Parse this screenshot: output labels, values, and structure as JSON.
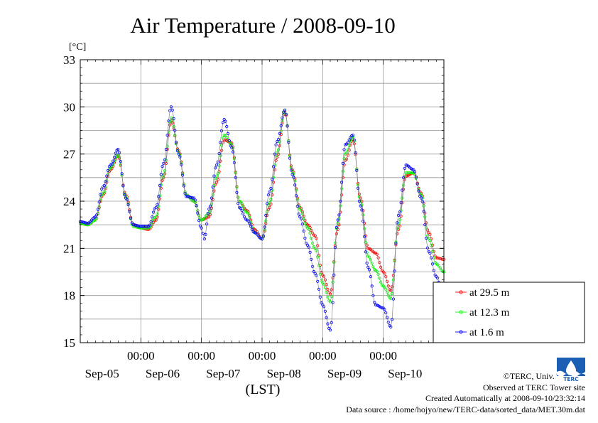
{
  "chart_data": {
    "type": "line",
    "title": "Air Temperature / 2008-09-10",
    "ylabel": "[°C]",
    "xlabel": "(LST)",
    "ylim": [
      15,
      33
    ],
    "yticks": [
      "33",
      "30",
      "27",
      "24",
      "21",
      "18",
      "15"
    ],
    "xlim": [
      0,
      6
    ],
    "xticks_top": [
      {
        "x": 1,
        "label": "00:00"
      },
      {
        "x": 2,
        "label": "00:00"
      },
      {
        "x": 3,
        "label": "00:00"
      },
      {
        "x": 4,
        "label": "00:00"
      },
      {
        "x": 5,
        "label": "00:00"
      }
    ],
    "xticks_bottom": [
      {
        "x": 0.5,
        "label": "Sep-05"
      },
      {
        "x": 1.5,
        "label": "Sep-06"
      },
      {
        "x": 2.5,
        "label": "Sep-07"
      },
      {
        "x": 3.5,
        "label": "Sep-08"
      },
      {
        "x": 4.5,
        "label": "Sep-09"
      },
      {
        "x": 5.5,
        "label": "Sep-10"
      }
    ],
    "grid": true,
    "legend_position": "right",
    "series": [
      {
        "name": "at 29.5 m",
        "color": "#ff0000",
        "points": [
          [
            0,
            22.6
          ],
          [
            0.125,
            22.5
          ],
          [
            0.25,
            22.8
          ],
          [
            0.375,
            24.4
          ],
          [
            0.5,
            26.0
          ],
          [
            0.625,
            26.9
          ],
          [
            0.75,
            24.4
          ],
          [
            0.875,
            22.5
          ],
          [
            1,
            22.3
          ],
          [
            1.125,
            22.2
          ],
          [
            1.25,
            22.8
          ],
          [
            1.375,
            25.5
          ],
          [
            1.5,
            29.1
          ],
          [
            1.625,
            27.2
          ],
          [
            1.75,
            24.4
          ],
          [
            1.875,
            24.0
          ],
          [
            2,
            22.8
          ],
          [
            2.125,
            23.0
          ],
          [
            2.25,
            25.2
          ],
          [
            2.375,
            27.9
          ],
          [
            2.5,
            27.7
          ],
          [
            2.625,
            24.0
          ],
          [
            2.75,
            23.4
          ],
          [
            2.875,
            22.2
          ],
          [
            3,
            21.6
          ],
          [
            3.125,
            23.6
          ],
          [
            3.25,
            26.8
          ],
          [
            3.375,
            29.7
          ],
          [
            3.5,
            26.0
          ],
          [
            3.625,
            23.6
          ],
          [
            3.75,
            22.5
          ],
          [
            3.875,
            21.8
          ],
          [
            4,
            19.3
          ],
          [
            4.125,
            18.1
          ],
          [
            4.25,
            22.2
          ],
          [
            4.375,
            26.6
          ],
          [
            4.5,
            27.9
          ],
          [
            4.625,
            24.2
          ],
          [
            4.75,
            21.0
          ],
          [
            4.875,
            20.7
          ],
          [
            5,
            19.5
          ],
          [
            5.125,
            18.3
          ],
          [
            5.25,
            22.2
          ],
          [
            5.375,
            25.6
          ],
          [
            5.5,
            25.8
          ],
          [
            5.625,
            24.5
          ],
          [
            5.75,
            22.0
          ],
          [
            5.875,
            20.4
          ],
          [
            6,
            20.3
          ]
        ]
      },
      {
        "name": "at 12.3 m",
        "color": "#00ff00",
        "points": [
          [
            0,
            22.6
          ],
          [
            0.125,
            22.5
          ],
          [
            0.25,
            22.8
          ],
          [
            0.375,
            24.5
          ],
          [
            0.5,
            26.1
          ],
          [
            0.625,
            27.0
          ],
          [
            0.75,
            24.3
          ],
          [
            0.875,
            22.4
          ],
          [
            1,
            22.3
          ],
          [
            1.125,
            22.3
          ],
          [
            1.25,
            23.0
          ],
          [
            1.375,
            25.7
          ],
          [
            1.5,
            29.3
          ],
          [
            1.625,
            27.1
          ],
          [
            1.75,
            24.4
          ],
          [
            1.875,
            24.0
          ],
          [
            2,
            22.8
          ],
          [
            2.125,
            23.2
          ],
          [
            2.25,
            25.6
          ],
          [
            2.375,
            28.2
          ],
          [
            2.5,
            27.6
          ],
          [
            2.625,
            24.0
          ],
          [
            2.75,
            23.3
          ],
          [
            2.875,
            22.0
          ],
          [
            3,
            21.6
          ],
          [
            3.125,
            23.9
          ],
          [
            3.25,
            27.1
          ],
          [
            3.375,
            29.8
          ],
          [
            3.5,
            25.9
          ],
          [
            3.625,
            23.5
          ],
          [
            3.75,
            22.3
          ],
          [
            3.875,
            21.0
          ],
          [
            4,
            18.8
          ],
          [
            4.125,
            17.6
          ],
          [
            4.25,
            22.6
          ],
          [
            4.375,
            27.0
          ],
          [
            4.5,
            28.1
          ],
          [
            4.625,
            24.0
          ],
          [
            4.75,
            20.5
          ],
          [
            4.875,
            19.6
          ],
          [
            5,
            18.6
          ],
          [
            5.125,
            17.8
          ],
          [
            5.25,
            22.6
          ],
          [
            5.375,
            25.8
          ],
          [
            5.5,
            25.8
          ],
          [
            5.625,
            24.4
          ],
          [
            5.75,
            21.6
          ],
          [
            5.875,
            20.0
          ],
          [
            6,
            19.5
          ]
        ]
      },
      {
        "name": "at 1.6 m",
        "color": "#0000ff",
        "points": [
          [
            0,
            22.7
          ],
          [
            0.125,
            22.6
          ],
          [
            0.25,
            23.0
          ],
          [
            0.375,
            24.9
          ],
          [
            0.5,
            26.3
          ],
          [
            0.625,
            27.3
          ],
          [
            0.75,
            24.2
          ],
          [
            0.875,
            22.5
          ],
          [
            1,
            22.4
          ],
          [
            1.125,
            22.4
          ],
          [
            1.25,
            23.6
          ],
          [
            1.375,
            26.4
          ],
          [
            1.5,
            30.0
          ],
          [
            1.625,
            27.0
          ],
          [
            1.75,
            24.3
          ],
          [
            1.875,
            24.2
          ],
          [
            2,
            22.3
          ],
          [
            2.05,
            21.6
          ],
          [
            2.125,
            23.5
          ],
          [
            2.25,
            26.3
          ],
          [
            2.375,
            29.2
          ],
          [
            2.5,
            27.4
          ],
          [
            2.625,
            23.6
          ],
          [
            2.75,
            22.8
          ],
          [
            2.875,
            22.0
          ],
          [
            3,
            21.6
          ],
          [
            3.125,
            24.6
          ],
          [
            3.25,
            27.8
          ],
          [
            3.375,
            29.8
          ],
          [
            3.5,
            25.7
          ],
          [
            3.625,
            23.0
          ],
          [
            3.75,
            21.2
          ],
          [
            3.875,
            19.4
          ],
          [
            4,
            17.4
          ],
          [
            4.125,
            15.8
          ],
          [
            4.25,
            22.8
          ],
          [
            4.375,
            27.6
          ],
          [
            4.5,
            28.2
          ],
          [
            4.625,
            23.7
          ],
          [
            4.75,
            19.8
          ],
          [
            4.875,
            17.4
          ],
          [
            5,
            17.2
          ],
          [
            5.125,
            16.0
          ],
          [
            5.25,
            23.1
          ],
          [
            5.375,
            26.3
          ],
          [
            5.5,
            26.0
          ],
          [
            5.625,
            24.2
          ],
          [
            5.75,
            20.8
          ],
          [
            5.875,
            19.2
          ],
          [
            6,
            17.8
          ]
        ]
      }
    ]
  },
  "credits": {
    "copyright": "©TERC, Univ. Tsukuba",
    "observed": "Observed at TERC Tower site",
    "created": "Created Automatically at 2008-09-10/23:32:14",
    "source": "Data source : /home/hojyo/new/TERC-data/sorted_data/MET.30m.dat",
    "logo_text": "TERC"
  }
}
